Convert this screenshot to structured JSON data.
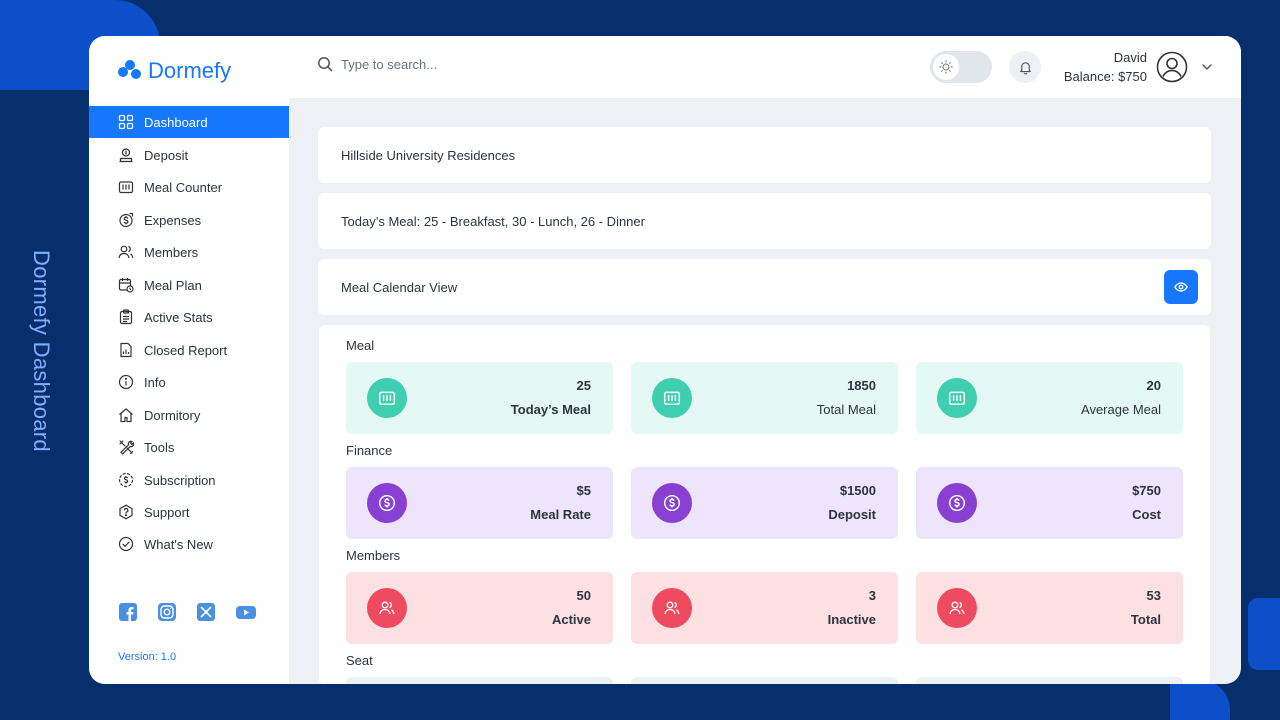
{
  "side_title": "Dormefy Dashboard",
  "app": {
    "name": "Dormefy",
    "version": "Version: 1.0"
  },
  "colors": {
    "accent": "#1677ff",
    "teal": "#3fcfb0",
    "purple": "#8a3fd3",
    "red": "#ef4b60"
  },
  "search": {
    "placeholder": "Type to search..."
  },
  "user": {
    "name": "David",
    "balance": "Balance: $750"
  },
  "sidebar": {
    "items": [
      {
        "label": "Dashboard",
        "icon": "grid-icon",
        "active": true
      },
      {
        "label": "Deposit",
        "icon": "deposit-icon"
      },
      {
        "label": "Meal Counter",
        "icon": "counter-icon"
      },
      {
        "label": "Expenses",
        "icon": "expenses-icon"
      },
      {
        "label": "Members",
        "icon": "members-icon"
      },
      {
        "label": "Meal Plan",
        "icon": "calendar-icon"
      },
      {
        "label": "Active Stats",
        "icon": "clipboard-icon"
      },
      {
        "label": "Closed Report",
        "icon": "report-icon"
      },
      {
        "label": "Info",
        "icon": "info-icon"
      },
      {
        "label": "Dormitory",
        "icon": "home-icon"
      },
      {
        "label": "Tools",
        "icon": "tools-icon"
      },
      {
        "label": "Subscription",
        "icon": "subscription-icon"
      },
      {
        "label": "Support",
        "icon": "support-icon"
      },
      {
        "label": "What's New",
        "icon": "check-circle-icon"
      }
    ]
  },
  "main": {
    "residence": "Hillside University Residences",
    "todays_meal": "Today’s Meal: 25 - Breakfast, 30 - Lunch, 26 - Dinner",
    "calendar_view": "Meal Calendar View",
    "sections": {
      "meal": {
        "label": "Meal",
        "tiles": [
          {
            "value": "25",
            "label": "Today’s Meal"
          },
          {
            "value": "1850",
            "label": "Total Meal"
          },
          {
            "value": "20",
            "label": "Average Meal"
          }
        ]
      },
      "finance": {
        "label": "Finance",
        "tiles": [
          {
            "value": "$5",
            "label": "Meal Rate"
          },
          {
            "value": "$1500",
            "label": "Deposit"
          },
          {
            "value": "$750",
            "label": "Cost"
          }
        ]
      },
      "members": {
        "label": "Members",
        "tiles": [
          {
            "value": "50",
            "label": "Active"
          },
          {
            "value": "3",
            "label": "Inactive"
          },
          {
            "value": "53",
            "label": "Total"
          }
        ]
      },
      "seat": {
        "label": "Seat"
      }
    }
  }
}
